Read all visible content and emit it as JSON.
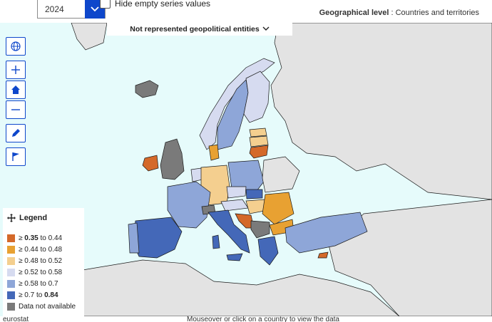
{
  "controls": {
    "year": "2024",
    "hide_empty_label": "Hide empty series values",
    "geo_level_label": "Geographical level",
    "geo_level_value": "Countries and territories",
    "not_represented": "Not represented geopolitical entities"
  },
  "toolbar": {
    "items": [
      "globe-icon",
      "zoom-in-icon",
      "home-icon",
      "zoom-out-icon",
      "edit-icon",
      "flag-icon"
    ]
  },
  "legend": {
    "title": "Legend",
    "items": [
      {
        "label_pre": "≥ ",
        "label_bold": "0.35",
        "label_post": " to 0.44",
        "color": "#d4692a"
      },
      {
        "label_pre": "≥ 0.44 to 0.48",
        "label_bold": "",
        "label_post": "",
        "color": "#e8a132"
      },
      {
        "label_pre": "≥ 0.48 to 0.52",
        "label_bold": "",
        "label_post": "",
        "color": "#f4cf8f"
      },
      {
        "label_pre": "≥ 0.52 to 0.58",
        "label_bold": "",
        "label_post": "",
        "color": "#d6dbf0"
      },
      {
        "label_pre": "≥ 0.58 to 0.7",
        "label_bold": "",
        "label_post": "",
        "color": "#8ea6d8"
      },
      {
        "label_pre": "≥ 0.7 to ",
        "label_bold": "0.84",
        "label_post": "",
        "color": "#4468b8"
      },
      {
        "label_pre": "Data not available",
        "label_bold": "",
        "label_post": "",
        "color": "#7a7a7a"
      }
    ]
  },
  "colors": {
    "accent": "#0e47cb",
    "sea": "#e6fbfb",
    "land_other": "#e3e3e3"
  },
  "footer": {
    "hint": "Mouseover or click on a country to view the data",
    "credit": "eurostat"
  }
}
